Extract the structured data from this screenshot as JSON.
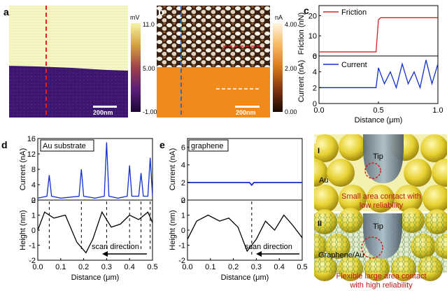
{
  "panels": {
    "a": {
      "letter": "a",
      "scale": "200nm",
      "cbar_unit": "mV",
      "cbar_ticks": [
        "11.0",
        "5.00",
        "-1.00"
      ]
    },
    "b": {
      "letter": "b",
      "scale": "200nm",
      "cbar_unit": "nA",
      "cbar_ticks": [
        "4.00",
        "2.00",
        "0.00"
      ]
    },
    "c": {
      "letter": "c",
      "legend_friction": "Friction",
      "legend_current": "Current",
      "ylabel_top": "Friction (nN)",
      "ylabel_bottom": "Current (nA)",
      "xlabel": "Distance (μm)",
      "top_ticks": [
        "0",
        "10",
        "20"
      ],
      "bottom_ticks": [
        "0",
        "2",
        "4",
        "6"
      ],
      "x_ticks": [
        "0.0",
        "0.5",
        "1.0"
      ]
    },
    "d": {
      "letter": "d",
      "title": "Au substrate",
      "ylabel_top": "Current (nA)",
      "ylabel_bottom": "Height (nm)",
      "xlabel": "Distance (μm)",
      "scan": "scan direction",
      "top_ticks": [
        "0",
        "4",
        "8",
        "12",
        "16"
      ],
      "bottom_ticks": [
        "-2",
        "-1",
        "0",
        "1",
        "2"
      ],
      "x_ticks": [
        "0.0",
        "0.1",
        "0.2",
        "0.3",
        "0.4",
        "0.5"
      ]
    },
    "e": {
      "letter": "e",
      "title": "graphene",
      "ylabel_top": "Current (nA)",
      "ylabel_bottom": "Height (nm)",
      "xlabel": "Distance (μm)",
      "scan": "scan direction",
      "top_ticks": [
        "0",
        "2",
        "4",
        "6"
      ],
      "bottom_ticks": [
        "-2",
        "-1",
        "0",
        "1",
        "2"
      ],
      "x_ticks": [
        "0.0",
        "0.1",
        "0.2",
        "0.3",
        "0.4",
        "0.5"
      ]
    },
    "f": {
      "letter": "f",
      "roman1": "I",
      "roman2": "II",
      "tip": "Tip",
      "au": "Au",
      "graphene_au": "Graphene/Au",
      "cap1_line1": "Small area contact with",
      "cap1_line2": "low reliability",
      "cap2_line1": "Flexible large area contact",
      "cap2_line2": "with high reliability"
    }
  },
  "colors": {
    "friction": "#d62020",
    "current": "#1030d0",
    "caption": "#c01818",
    "dash_a": "#e02020",
    "dash_b": "#2070d0"
  },
  "chart_data": [
    {
      "type": "line",
      "panel": "c-top",
      "ylabel": "Friction (nN)",
      "ylim": [
        0,
        25
      ],
      "xlim": [
        0,
        1.0
      ],
      "series": [
        {
          "name": "Friction",
          "x": [
            0.0,
            0.1,
            0.2,
            0.3,
            0.4,
            0.48,
            0.5,
            0.52,
            0.6,
            0.7,
            0.8,
            0.9,
            1.0
          ],
          "values": [
            2,
            2,
            2,
            2,
            2,
            2,
            18,
            19,
            19,
            19,
            19,
            19,
            19
          ]
        }
      ]
    },
    {
      "type": "line",
      "panel": "c-bottom",
      "ylabel": "Current (nA)",
      "xlabel": "Distance (μm)",
      "ylim": [
        0,
        6
      ],
      "xlim": [
        0,
        1.0
      ],
      "series": [
        {
          "name": "Current",
          "x": [
            0.0,
            0.1,
            0.2,
            0.3,
            0.4,
            0.48,
            0.5,
            0.55,
            0.6,
            0.65,
            0.7,
            0.75,
            0.8,
            0.85,
            0.9,
            0.95,
            1.0
          ],
          "values": [
            2,
            2,
            2,
            2,
            2,
            2,
            4.5,
            2.5,
            4,
            2,
            5,
            2.5,
            4,
            2,
            5.5,
            2.5,
            5
          ]
        }
      ]
    },
    {
      "type": "line",
      "panel": "d-top",
      "title": "Au substrate",
      "ylabel": "Current (nA)",
      "ylim": [
        0,
        16
      ],
      "xlim": [
        0,
        0.5
      ],
      "x": [
        0.0,
        0.04,
        0.05,
        0.06,
        0.1,
        0.18,
        0.19,
        0.2,
        0.25,
        0.29,
        0.3,
        0.31,
        0.35,
        0.39,
        0.4,
        0.41,
        0.44,
        0.45,
        0.46,
        0.48,
        0.49,
        0.5
      ],
      "series": [
        {
          "values": [
            0.5,
            1,
            6.5,
            1,
            0.5,
            1,
            8,
            1,
            0.5,
            1,
            15,
            1,
            0.5,
            1,
            9,
            1,
            1,
            7,
            1,
            1,
            11,
            1
          ]
        }
      ]
    },
    {
      "type": "line",
      "panel": "d-bottom",
      "ylabel": "Height (nm)",
      "xlabel": "Distance (μm)",
      "ylim": [
        -2,
        2
      ],
      "xlim": [
        0,
        0.5
      ],
      "x": [
        0.0,
        0.03,
        0.07,
        0.12,
        0.17,
        0.21,
        0.24,
        0.28,
        0.32,
        0.36,
        0.4,
        0.44,
        0.48,
        0.5
      ],
      "series": [
        {
          "values": [
            0,
            1.2,
            0.8,
            1.0,
            -0.8,
            -1.5,
            -0.6,
            1.2,
            0.2,
            0.4,
            1.0,
            0.7,
            1.2,
            0.5
          ]
        }
      ]
    },
    {
      "type": "line",
      "panel": "e-top",
      "title": "graphene",
      "ylabel": "Current (nA)",
      "ylim": [
        0,
        7
      ],
      "xlim": [
        0,
        0.5
      ],
      "x": [
        0.0,
        0.27,
        0.28,
        0.29,
        0.5
      ],
      "series": [
        {
          "values": [
            2,
            2,
            1.7,
            2,
            2
          ]
        }
      ]
    },
    {
      "type": "line",
      "panel": "e-bottom",
      "ylabel": "Height (nm)",
      "xlabel": "Distance (μm)",
      "ylim": [
        -2,
        2
      ],
      "xlim": [
        0,
        0.5
      ],
      "x": [
        0.0,
        0.04,
        0.09,
        0.14,
        0.18,
        0.22,
        0.26,
        0.3,
        0.34,
        0.38,
        0.42,
        0.46,
        0.5
      ],
      "series": [
        {
          "values": [
            -0.6,
            0.6,
            1.0,
            0.6,
            0.8,
            0.2,
            -1.4,
            -0.6,
            0.6,
            0.0,
            1.0,
            0.3,
            -0.5
          ]
        }
      ]
    }
  ]
}
